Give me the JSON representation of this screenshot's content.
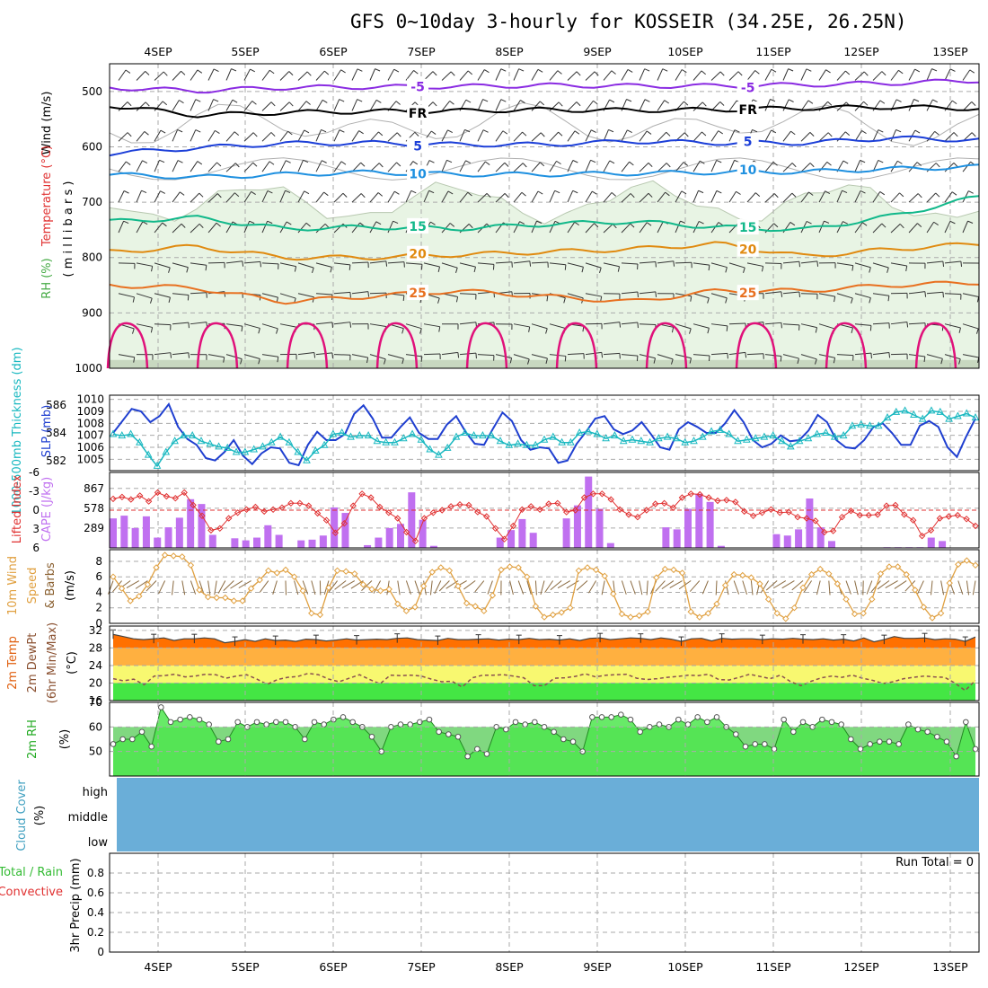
{
  "title": "GFS 0~10day 3-hourly for KOSSEIR (34.25E, 26.25N)",
  "dates": [
    "4SEP",
    "5SEP",
    "6SEP",
    "7SEP",
    "8SEP",
    "9SEP",
    "10SEP",
    "11SEP",
    "12SEP",
    "13SEP"
  ],
  "panel_labels": {
    "wind": "Wind (m/s)",
    "temperature": "Temperature (°C)",
    "rh": "RH (%)",
    "millibars": "( m i l l i b a r s )",
    "thickness": "1000-500mb Thickness (dm)",
    "slp": "SLP (mb)",
    "lifted_index": "Lifted Index",
    "cape": "CAPE (J/kg)",
    "wind10_a": "10m Wind",
    "wind10_b": "Speed",
    "wind10_c": "& Barbs",
    "wind10_unit": "(m/s)",
    "t2m_a": "2m Temp",
    "t2m_b": "2m DewPt",
    "t2m_c": "(6hr Min/Max)",
    "t2m_unit": "(°C)",
    "rh2m": "2m RH",
    "rh2m_unit": "(%)",
    "cloud": "Cloud Cover",
    "cloud_unit": "(%)",
    "precip_a": "Total / Rain",
    "precip_b": "Convective",
    "precip_c": "3hr Precip (mm)"
  },
  "run_total": "Run Total = 0",
  "cloud_levels": [
    "high",
    "middle",
    "low"
  ],
  "colors": {
    "rh_fill": "#e8f4e4",
    "slp": "#1f3fd0",
    "thickness": "#19b8c0",
    "lifted": "#e03030",
    "cape": "#c070f0",
    "wind10": "#e0a040",
    "temp_orange": "#ff7000",
    "rh2m_green": "#44e644",
    "cloud_blue": "#6aaed8"
  },
  "chart_data": [
    {
      "type": "line",
      "name": "upper-air",
      "ylabel": "Temperature (°C) Wind (m/s) RH (%) (millibars)",
      "yticks": [
        500,
        600,
        700,
        800,
        900,
        1000
      ],
      "ylim": [
        450,
        1000
      ],
      "isotherm_labels": [
        "-5",
        "FR",
        "5",
        "10",
        "15",
        "20",
        "25"
      ],
      "isotherms": [
        {
          "label": "-5",
          "color": "#8a2be2",
          "pressures": [
            493,
            499,
            493,
            492,
            491,
            489,
            490,
            490,
            488,
            485,
            480
          ]
        },
        {
          "label": "FR",
          "color": "#000000",
          "pressures": [
            525,
            543,
            538,
            536,
            535,
            533,
            534,
            533,
            530,
            528,
            531
          ]
        },
        {
          "label": "5",
          "color": "#1c3fd8",
          "pressures": [
            612,
            602,
            594,
            593,
            596,
            596,
            590,
            593,
            593,
            584,
            588
          ]
        },
        {
          "label": "10",
          "color": "#1e90e0",
          "pressures": [
            650,
            655,
            650,
            646,
            650,
            650,
            648,
            646,
            645,
            640,
            636
          ]
        },
        {
          "label": "15",
          "color": "#11b88a",
          "pressures": [
            735,
            728,
            748,
            745,
            748,
            740,
            735,
            745,
            750,
            725,
            690
          ]
        },
        {
          "label": "20",
          "color": "#e08a10",
          "pressures": [
            790,
            780,
            800,
            800,
            795,
            790,
            785,
            775,
            798,
            785,
            775
          ]
        },
        {
          "label": "25",
          "color": "#e87020",
          "pressures": [
            850,
            855,
            880,
            870,
            860,
            870,
            880,
            860,
            860,
            850,
            845
          ]
        }
      ]
    },
    {
      "type": "line",
      "name": "slp-thickness",
      "left_ticks": [
        582,
        584,
        586
      ],
      "right_ticks": [
        1005,
        1006,
        1007,
        1008,
        1009,
        1010
      ],
      "series": [
        {
          "name": "SLP (mb)",
          "values": [
            1007.2,
            1008.2,
            1009.2,
            1009.0,
            1008.1,
            1008.6,
            1009.6,
            1007.7,
            1006.7,
            1006.2,
            1005.1,
            1004.9,
            1005.6,
            1006.6,
            1005.3,
            1004.6,
            1005.5,
            1006.0,
            1005.9,
            1004.7,
            1004.5,
            1006.2,
            1007.3,
            1006.6,
            1006.6,
            1007.1,
            1008.8,
            1009.5,
            1008.4,
            1006.8,
            1006.8,
            1007.7,
            1008.5,
            1007.2,
            1006.7,
            1006.7,
            1007.9,
            1008.6,
            1007.3,
            1006.3,
            1006.2,
            1007.6,
            1008.9,
            1008.2,
            1006.6,
            1005.8,
            1006.0,
            1005.9,
            1004.7,
            1004.9,
            1006.3,
            1007.3,
            1008.4,
            1008.6,
            1007.5,
            1007.1,
            1007.4,
            1008.1,
            1007.1,
            1006.0,
            1005.8,
            1007.5,
            1008.1,
            1007.7,
            1007.2,
            1007.2,
            1008.0,
            1009.1,
            1008.1,
            1006.6,
            1006.0,
            1006.3,
            1007.0,
            1006.5,
            1006.6,
            1007.4,
            1008.7,
            1008.1,
            1006.6,
            1006.0,
            1005.9,
            1006.6,
            1007.7,
            1008.0,
            1007.2,
            1006.2,
            1006.2,
            1007.8,
            1008.2,
            1007.7,
            1006.0,
            1005.2,
            1006.9,
            1008.4
          ]
        },
        {
          "name": "1000-500mb Thickness (dm)",
          "values": [
            583.9,
            583.8,
            583.9,
            583.3,
            582.4,
            581.6,
            582.6,
            583.4,
            583.8,
            583.8,
            583.4,
            583.2,
            583.0,
            582.9,
            582.6,
            582.6,
            582.8,
            583.0,
            583.3,
            583.7,
            583.3,
            582.6,
            582.0,
            582.7,
            583.1,
            583.9,
            584.0,
            583.7,
            583.8,
            583.8,
            583.4,
            583.3,
            583.3,
            583.6,
            583.9,
            583.5,
            582.8,
            582.4,
            582.9,
            583.7,
            584.0,
            583.8,
            583.8,
            583.8,
            583.4,
            583.1,
            583.2,
            583.1,
            583.1,
            583.5,
            583.7,
            583.3,
            583.3,
            584.0,
            584.1,
            583.9,
            583.6,
            583.8,
            583.4,
            583.5,
            583.4,
            583.3,
            583.6,
            583.7,
            583.6,
            583.3,
            583.4,
            583.7,
            584.1,
            584.2,
            583.9,
            583.4,
            583.5,
            583.6,
            583.7,
            583.8,
            583.4,
            583.0,
            583.4,
            583.6,
            583.9,
            584.0,
            583.7,
            583.8,
            584.5,
            584.6,
            584.5,
            584.5,
            585.1,
            585.5,
            585.6,
            585.3,
            585.0,
            585.6,
            585.5,
            585.0,
            585.2,
            585.4,
            585.1
          ]
        }
      ]
    },
    {
      "type": "bar",
      "name": "cape-lifted-index",
      "lifted_ticks": [
        -6,
        -3,
        0,
        3,
        6
      ],
      "cape_ticks": [
        289,
        578,
        867
      ],
      "series": [
        {
          "name": "CAPE (J/kg)",
          "values": [
            430,
            470,
            290,
            460,
            150,
            300,
            440,
            710,
            640,
            190,
            0,
            140,
            110,
            150,
            330,
            190,
            0,
            110,
            120,
            180,
            590,
            510,
            0,
            40,
            150,
            290,
            350,
            810,
            410,
            30,
            0,
            0,
            0,
            0,
            0,
            150,
            260,
            420,
            220,
            0,
            0,
            430,
            620,
            1040,
            570,
            70,
            0,
            0,
            0,
            0,
            300,
            270,
            570,
            790,
            670,
            30,
            0,
            0,
            0,
            0,
            200,
            180,
            270,
            720,
            300,
            100,
            0,
            0,
            0,
            0,
            10,
            10,
            10,
            10,
            150,
            100,
            0,
            0,
            0
          ]
        },
        {
          "name": "Lifted Index",
          "values": [
            -1.8,
            -2.1,
            -1.7,
            -2.3,
            -1.4,
            -2.8,
            -2.2,
            -1.9,
            -2.8,
            -0.8,
            0.9,
            3.2,
            2.9,
            1.3,
            0.4,
            -0.1,
            -0.5,
            0.2,
            -0.1,
            -0.4,
            -1.1,
            -1.1,
            -0.7,
            0.5,
            1.6,
            3.6,
            2.1,
            -0.7,
            -2.6,
            -2.0,
            -0.5,
            0.4,
            1.3,
            3.5,
            4.9,
            1.3,
            0.4,
            0.0,
            -0.6,
            -0.9,
            -0.8,
            0.3,
            1.0,
            2.9,
            4.6,
            2.5,
            -0.1,
            -0.6,
            -0.1,
            -1.0,
            -1.1,
            0.3,
            0.0,
            -2.0,
            -2.6,
            -2.6,
            -1.7,
            -0.1,
            0.7,
            1.1,
            0.0,
            -1.0,
            -1.1,
            -0.4,
            -2.0,
            -2.6,
            -2.5,
            -2.0,
            -1.5,
            -1.6,
            -1.3,
            0.2,
            0.9,
            0.4,
            -0.1,
            0.4,
            0.3,
            1.1,
            1.3,
            1.7,
            3.5,
            3.3,
            1.1,
            0.1,
            0.8,
            0.8,
            0.7,
            -0.7,
            -0.8,
            0.7,
            1.6,
            4.1,
            3.2,
            1.3,
            1.0,
            0.8,
            1.4,
            2.5
          ]
        }
      ]
    },
    {
      "type": "line",
      "name": "10m-wind",
      "yticks": [
        0,
        2,
        4,
        6,
        8
      ],
      "series": [
        {
          "name": "10m Wind Speed (m/s)",
          "values": [
            6.0,
            4.5,
            2.9,
            3.5,
            5.0,
            7.2,
            8.8,
            8.7,
            8.6,
            7.5,
            4.3,
            3.4,
            3.3,
            3.3,
            2.9,
            2.9,
            4.5,
            5.6,
            6.8,
            6.5,
            6.9,
            6.0,
            4.2,
            1.3,
            1.1,
            4.6,
            6.8,
            6.7,
            6.4,
            5.0,
            4.4,
            4.2,
            4.4,
            2.5,
            1.6,
            2.1,
            4.8,
            6.6,
            7.2,
            6.8,
            4.8,
            2.6,
            2.2,
            1.6,
            3.6,
            6.9,
            7.3,
            7.2,
            6.0,
            2.2,
            0.8,
            1.1,
            1.4,
            2.0,
            6.8,
            7.2,
            6.9,
            6.1,
            3.8,
            1.2,
            0.8,
            1.0,
            1.5,
            5.9,
            7.0,
            6.9,
            6.5,
            1.5,
            0.8,
            1.3,
            2.5,
            4.9,
            6.3,
            6.2,
            5.9,
            5.1,
            3.1,
            1.3,
            0.6,
            2.0,
            4.6,
            6.3,
            7.0,
            6.4,
            5.1,
            3.1,
            1.2,
            1.3,
            3.1,
            6.4,
            7.3,
            7.3,
            6.3,
            4.3,
            2.1,
            0.7,
            1.3,
            5.2,
            7.6,
            8.1,
            7.5
          ]
        }
      ]
    },
    {
      "type": "area",
      "name": "2m-temperature",
      "yticks": [
        16,
        20,
        24,
        28,
        32
      ],
      "series": [
        {
          "name": "2m Temp",
          "values": [
            31.1,
            30.6,
            30.1,
            29.9,
            30.1,
            30.3,
            29.7,
            30.1,
            30.1,
            30.3,
            30.1,
            29.2,
            29.5,
            29.9,
            29.5,
            30.1,
            29.7,
            29.8,
            29.5,
            30.0,
            29.9,
            29.6,
            29.8,
            30.1,
            29.8,
            29.9,
            30.0,
            29.9,
            30.2,
            30.3,
            29.9,
            29.8,
            29.7,
            30.2,
            29.9,
            29.9,
            30.0,
            30.1,
            29.8,
            30.0,
            29.9,
            30.2,
            29.9,
            30.0,
            29.8,
            30.1,
            29.7,
            30.2,
            30.3,
            29.9,
            30.1,
            30.3,
            30.2,
            29.9,
            30.3,
            30.0,
            29.5,
            30.1,
            30.2,
            29.6,
            30.2,
            30.0,
            30.1,
            30.1,
            29.9,
            30.1,
            30.0,
            30.2,
            30.0,
            29.9,
            30.1,
            29.8,
            30.0,
            29.6,
            30.3,
            29.4,
            29.9,
            30.6,
            30.2,
            30.2,
            30.3,
            29.9,
            30.1,
            30.0,
            29.5,
            30.5
          ]
        },
        {
          "name": "2m DewPt",
          "values": [
            21.0,
            20.5,
            20.9,
            19.6,
            21.6,
            21.7,
            22.0,
            21.4,
            21.6,
            22.0,
            21.9,
            21.1,
            21.6,
            21.9,
            20.9,
            19.7,
            20.8,
            21.3,
            21.5,
            22.2,
            21.9,
            20.9,
            20.3,
            21.1,
            21.9,
            20.8,
            19.8,
            21.8,
            21.7,
            21.8,
            21.6,
            20.9,
            20.3,
            20.4,
            19.1,
            21.2,
            21.8,
            21.8,
            21.9,
            21.6,
            21.2,
            19.4,
            19.4,
            21.1,
            21.2,
            21.5,
            22.1,
            21.4,
            21.8,
            21.9,
            22.0,
            21.1,
            20.8,
            21.0,
            21.3,
            21.5,
            21.8,
            21.7,
            22.0,
            20.8,
            20.7,
            21.3,
            22.0,
            21.5,
            21.0,
            21.8,
            20.3,
            19.4,
            20.4,
            21.2,
            21.6,
            21.3,
            21.8,
            21.1,
            20.6,
            19.9,
            20.3,
            21.0,
            21.3,
            21.6,
            21.4,
            21.3,
            20.0,
            18.3,
            20.6
          ]
        }
      ]
    },
    {
      "type": "area",
      "name": "2m-rh",
      "yticks": [
        50,
        60,
        70
      ],
      "series": [
        {
          "name": "2m RH",
          "values": [
            53,
            55,
            55,
            58,
            52,
            68,
            62,
            63,
            64,
            63,
            61,
            54,
            55,
            62,
            60,
            62,
            61,
            62,
            62,
            60,
            55,
            62,
            61,
            63,
            64,
            62,
            60,
            56,
            50,
            60,
            61,
            61,
            62,
            63,
            58,
            57,
            56,
            48,
            51,
            49,
            60,
            59,
            62,
            61,
            62,
            60,
            58,
            55,
            54,
            50,
            64,
            64,
            64,
            65,
            63,
            58,
            60,
            61,
            60,
            63,
            61,
            64,
            62,
            64,
            60,
            57,
            52,
            53,
            53,
            51,
            63,
            58,
            62,
            60,
            63,
            62,
            61,
            55,
            51,
            53,
            54,
            54,
            53,
            61,
            59,
            58,
            56,
            54,
            48,
            62,
            51
          ]
        }
      ]
    },
    {
      "type": "area",
      "name": "cloud-cover",
      "categories": [
        "high",
        "middle",
        "low"
      ],
      "note": ""
    },
    {
      "type": "bar",
      "name": "3hr-precip",
      "yticks": [
        0,
        0.2,
        0.4,
        0.6,
        0.8
      ],
      "ylim": [
        0,
        1
      ],
      "series": [
        {
          "name": "Total / Rain",
          "values": []
        },
        {
          "name": "Convective",
          "values": []
        }
      ]
    }
  ]
}
